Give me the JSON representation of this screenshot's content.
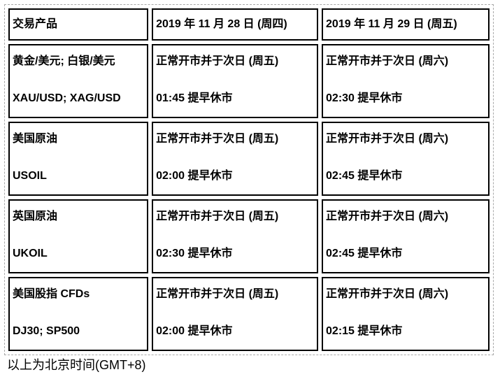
{
  "table": {
    "headers": {
      "product": "交易产品",
      "thursday": "2019 年 11 月 28 日 (周四)",
      "friday": "2019 年 11 月 29 日 (周五)"
    },
    "rows": [
      {
        "product_line1": "黄金/美元; 白银/美元",
        "product_line2": "XAU/USD; XAG/USD",
        "thu_line1": "正常开市并于次日 (周五)",
        "thu_line2": "01:45 提早休市",
        "fri_line1": "正常开市并于次日 (周六)",
        "fri_line2": "02:30 提早休市"
      },
      {
        "product_line1": "美国原油",
        "product_line2": "USOIL",
        "thu_line1": "正常开市并于次日 (周五)",
        "thu_line2": "02:00 提早休市",
        "fri_line1": "正常开市并于次日 (周六)",
        "fri_line2": "02:45 提早休市"
      },
      {
        "product_line1": "英国原油",
        "product_line2": "UKOIL",
        "thu_line1": "正常开市并于次日 (周五)",
        "thu_line2": "02:30 提早休市",
        "fri_line1": "正常开市并于次日 (周六)",
        "fri_line2": "02:45 提早休市"
      },
      {
        "product_line1": "美国股指 CFDs",
        "product_line2": "DJ30; SP500",
        "thu_line1": "正常开市并于次日 (周五)",
        "thu_line2": "02:00 提早休市",
        "fri_line1": "正常开市并于次日 (周六)",
        "fri_line2": "02:15 提早休市"
      }
    ]
  },
  "footnote": "以上为北京时间(GMT+8)",
  "colors": {
    "cell_border": "#000000",
    "outer_dashed_border": "#a9a9a9",
    "text": "#000000",
    "background": "#ffffff"
  }
}
